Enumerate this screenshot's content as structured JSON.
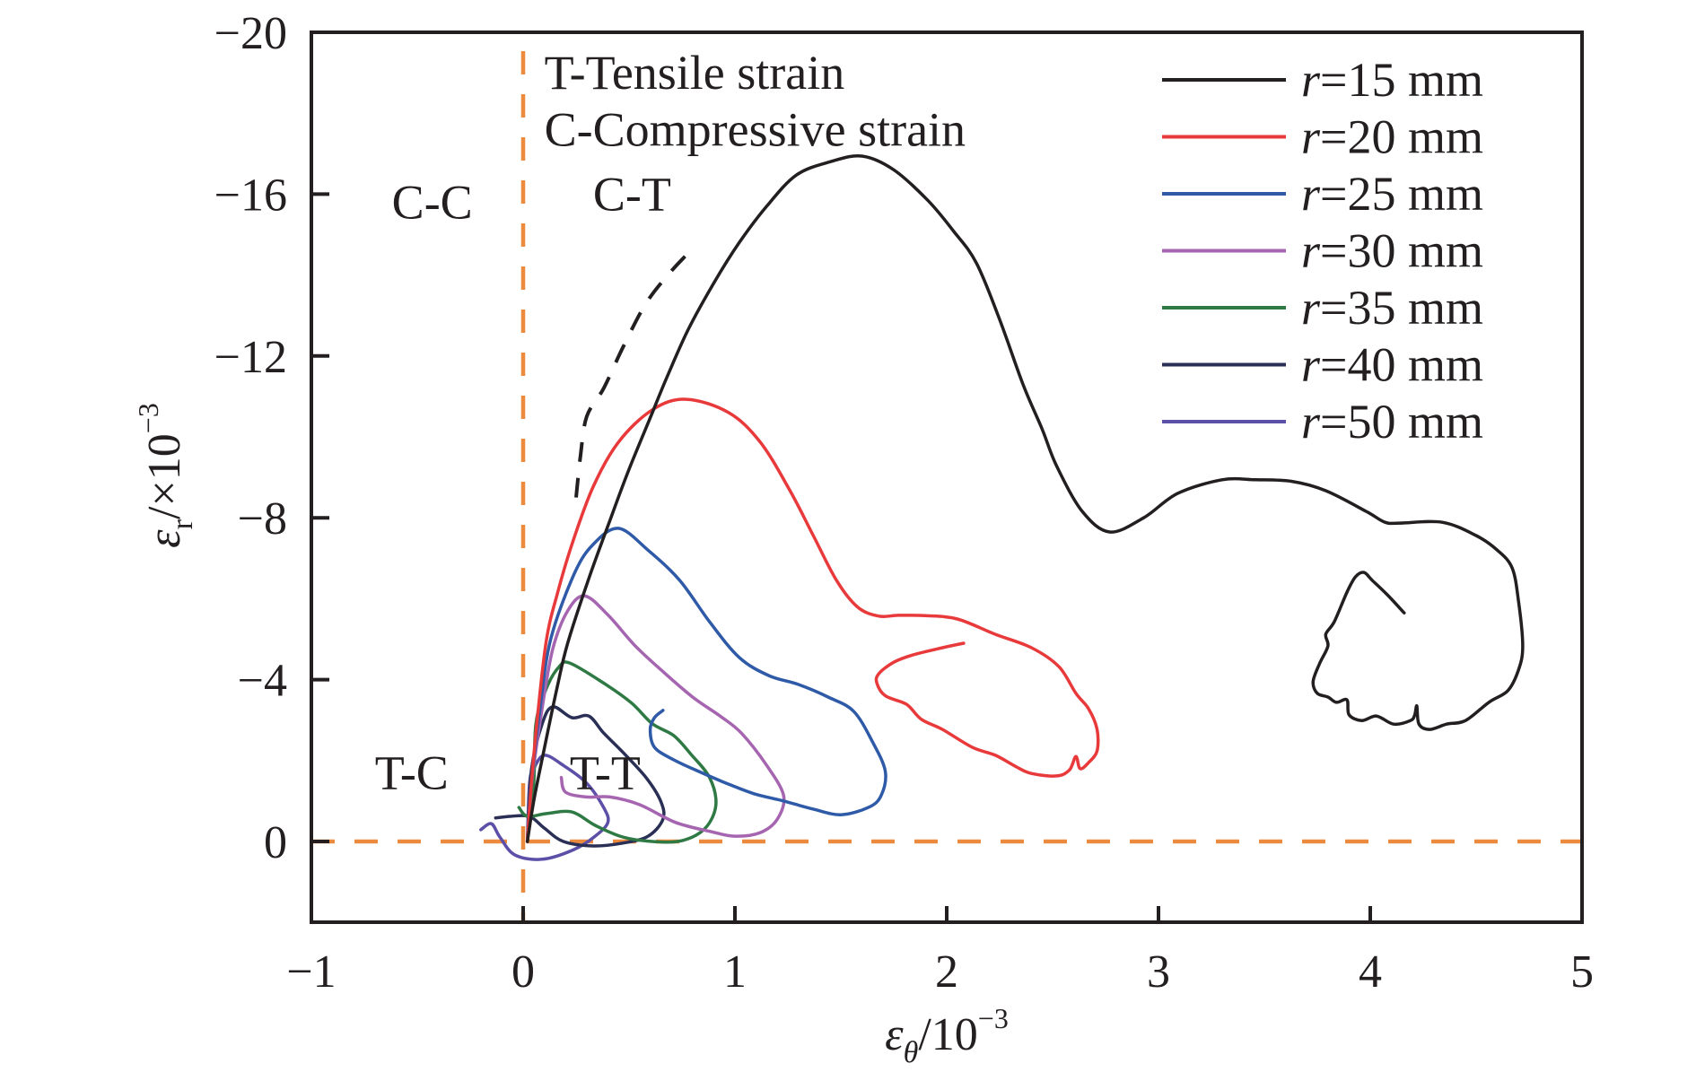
{
  "chart_data": {
    "type": "line",
    "title": "",
    "xlabel": {
      "symbol": "ε",
      "subscript": "θ",
      "unit": "/10",
      "exponent": "−3"
    },
    "ylabel": {
      "symbol": "ε",
      "subscript": "r",
      "unit": "/×10",
      "exponent": "−3"
    },
    "xlim": [
      -1,
      5
    ],
    "ylim": [
      -20,
      2
    ],
    "y_axis_inverted": true,
    "x_ticks": [
      -1,
      0,
      1,
      2,
      3,
      4,
      5
    ],
    "x_tick_labels": [
      "−1",
      "0",
      "1",
      "2",
      "3",
      "4",
      "5"
    ],
    "y_ticks": [
      -20,
      -16,
      -12,
      -8,
      -4,
      0
    ],
    "y_tick_labels": [
      "−20",
      "−16",
      "−12",
      "−8",
      "−4",
      "0"
    ],
    "grid": false,
    "legend_position": "top-right",
    "reference_lines": [
      {
        "orientation": "vertical",
        "value": 0,
        "style": "dashed",
        "color": "#ec8a3d"
      },
      {
        "orientation": "horizontal",
        "value": 0,
        "style": "dashed",
        "color": "#ec8a3d"
      }
    ],
    "annotations": [
      {
        "text": "T-Tensile strain",
        "x": 0.1,
        "y": -18.6
      },
      {
        "text": "C-Compressive strain",
        "x": 0.1,
        "y": -17.2
      },
      {
        "text": "C-C",
        "x": -0.62,
        "y": -15.4
      },
      {
        "text": "C-T",
        "x": 0.33,
        "y": -15.6
      },
      {
        "text": "T-C",
        "x": -0.7,
        "y": -1.3
      },
      {
        "text": "T-T",
        "x": 0.22,
        "y": -1.3
      }
    ],
    "guide_curve": {
      "style": "dashed",
      "color": "#231f20",
      "points": [
        [
          0.25,
          -8.5
        ],
        [
          0.27,
          -9.5
        ],
        [
          0.3,
          -10.5
        ],
        [
          0.38,
          -11.2
        ],
        [
          0.47,
          -12.2
        ],
        [
          0.58,
          -13.3
        ],
        [
          0.7,
          -14.1
        ],
        [
          0.81,
          -14.7
        ]
      ]
    },
    "series": [
      {
        "name": "r=15 mm",
        "label_var": "r",
        "label_value": "=15 mm",
        "color": "#231f20",
        "points": [
          [
            0.02,
            0
          ],
          [
            0.05,
            -1.0
          ],
          [
            0.1,
            -2.3
          ],
          [
            0.16,
            -3.8
          ],
          [
            0.21,
            -4.9
          ],
          [
            0.31,
            -6.5
          ],
          [
            0.41,
            -7.94
          ],
          [
            0.5,
            -9.2
          ],
          [
            0.61,
            -10.6
          ],
          [
            0.68,
            -11.49
          ],
          [
            0.78,
            -12.66
          ],
          [
            0.9,
            -13.8
          ],
          [
            1.02,
            -14.8
          ],
          [
            1.15,
            -15.7
          ],
          [
            1.29,
            -16.47
          ],
          [
            1.45,
            -16.8
          ],
          [
            1.6,
            -16.94
          ],
          [
            1.75,
            -16.6
          ],
          [
            1.91,
            -15.85
          ],
          [
            2.03,
            -15.1
          ],
          [
            2.14,
            -14.3
          ],
          [
            2.25,
            -12.9
          ],
          [
            2.36,
            -11.3
          ],
          [
            2.45,
            -10.2
          ],
          [
            2.52,
            -9.27
          ],
          [
            2.64,
            -8.16
          ],
          [
            2.77,
            -7.65
          ],
          [
            2.93,
            -8.0
          ],
          [
            3.09,
            -8.6
          ],
          [
            3.3,
            -8.94
          ],
          [
            3.46,
            -8.94
          ],
          [
            3.63,
            -8.9
          ],
          [
            3.79,
            -8.67
          ],
          [
            3.98,
            -8.16
          ],
          [
            4.07,
            -7.89
          ],
          [
            4.14,
            -7.87
          ],
          [
            4.34,
            -7.89
          ],
          [
            4.5,
            -7.56
          ],
          [
            4.6,
            -7.2
          ],
          [
            4.67,
            -6.76
          ],
          [
            4.7,
            -5.94
          ],
          [
            4.72,
            -4.83
          ],
          [
            4.7,
            -4.24
          ],
          [
            4.65,
            -3.73
          ],
          [
            4.56,
            -3.44
          ],
          [
            4.45,
            -2.99
          ],
          [
            4.36,
            -2.9
          ],
          [
            4.28,
            -2.77
          ],
          [
            4.23,
            -2.9
          ],
          [
            4.22,
            -3.35
          ],
          [
            4.21,
            -3.13
          ],
          [
            4.19,
            -2.99
          ],
          [
            4.11,
            -2.9
          ],
          [
            4.03,
            -3.1
          ],
          [
            3.96,
            -2.99
          ],
          [
            3.9,
            -3.13
          ],
          [
            3.89,
            -3.5
          ],
          [
            3.84,
            -3.44
          ],
          [
            3.8,
            -3.57
          ],
          [
            3.75,
            -3.66
          ],
          [
            3.73,
            -3.95
          ],
          [
            3.76,
            -4.39
          ],
          [
            3.8,
            -4.83
          ],
          [
            3.79,
            -5.12
          ],
          [
            3.83,
            -5.43
          ],
          [
            3.89,
            -6.16
          ],
          [
            3.93,
            -6.54
          ],
          [
            3.97,
            -6.65
          ],
          [
            4.01,
            -6.45
          ],
          [
            4.08,
            -6.1
          ],
          [
            4.16,
            -5.65
          ]
        ]
      },
      {
        "name": "r=20 mm",
        "label_var": "r",
        "label_value": "=20 mm",
        "color": "#e8393b",
        "points": [
          [
            0.02,
            0
          ],
          [
            0.04,
            -1.5
          ],
          [
            0.07,
            -3.2
          ],
          [
            0.11,
            -4.99
          ],
          [
            0.16,
            -6.1
          ],
          [
            0.23,
            -7.34
          ],
          [
            0.33,
            -8.76
          ],
          [
            0.45,
            -9.87
          ],
          [
            0.61,
            -10.67
          ],
          [
            0.77,
            -10.93
          ],
          [
            0.97,
            -10.6
          ],
          [
            1.12,
            -9.87
          ],
          [
            1.26,
            -8.67
          ],
          [
            1.37,
            -7.56
          ],
          [
            1.48,
            -6.45
          ],
          [
            1.58,
            -5.79
          ],
          [
            1.68,
            -5.57
          ],
          [
            1.77,
            -5.59
          ],
          [
            1.9,
            -5.58
          ],
          [
            2.05,
            -5.5
          ],
          [
            2.23,
            -5.12
          ],
          [
            2.4,
            -4.79
          ],
          [
            2.53,
            -4.32
          ],
          [
            2.61,
            -3.66
          ],
          [
            2.67,
            -3.28
          ],
          [
            2.71,
            -2.77
          ],
          [
            2.71,
            -2.24
          ],
          [
            2.67,
            -1.95
          ],
          [
            2.63,
            -1.8
          ],
          [
            2.61,
            -2.1
          ],
          [
            2.58,
            -1.77
          ],
          [
            2.52,
            -1.62
          ],
          [
            2.4,
            -1.68
          ],
          [
            2.33,
            -1.84
          ],
          [
            2.23,
            -2.13
          ],
          [
            2.12,
            -2.33
          ],
          [
            1.98,
            -2.77
          ],
          [
            1.88,
            -3.02
          ],
          [
            1.81,
            -3.39
          ],
          [
            1.71,
            -3.6
          ],
          [
            1.67,
            -3.92
          ],
          [
            1.68,
            -4.15
          ],
          [
            1.75,
            -4.43
          ],
          [
            1.84,
            -4.61
          ],
          [
            1.98,
            -4.79
          ],
          [
            2.08,
            -4.9
          ]
        ]
      },
      {
        "name": "r=25 mm",
        "label_var": "r",
        "label_value": "=25 mm",
        "color": "#2e5aa8",
        "points": [
          [
            0.02,
            0
          ],
          [
            0.04,
            -1.5
          ],
          [
            0.08,
            -3.3
          ],
          [
            0.13,
            -5.0
          ],
          [
            0.24,
            -6.6
          ],
          [
            0.33,
            -7.34
          ],
          [
            0.45,
            -7.74
          ],
          [
            0.59,
            -7.2
          ],
          [
            0.74,
            -6.45
          ],
          [
            0.88,
            -5.43
          ],
          [
            1.02,
            -4.55
          ],
          [
            1.16,
            -4.1
          ],
          [
            1.3,
            -3.88
          ],
          [
            1.44,
            -3.57
          ],
          [
            1.56,
            -3.22
          ],
          [
            1.65,
            -2.46
          ],
          [
            1.71,
            -1.73
          ],
          [
            1.69,
            -1.13
          ],
          [
            1.63,
            -0.84
          ],
          [
            1.5,
            -0.66
          ],
          [
            1.37,
            -0.8
          ],
          [
            1.23,
            -1.0
          ],
          [
            1.09,
            -1.18
          ],
          [
            0.95,
            -1.46
          ],
          [
            0.83,
            -1.73
          ],
          [
            0.71,
            -2.02
          ],
          [
            0.62,
            -2.33
          ],
          [
            0.6,
            -2.77
          ],
          [
            0.62,
            -3.06
          ],
          [
            0.66,
            -3.24
          ]
        ]
      },
      {
        "name": "r=30 mm",
        "label_var": "r",
        "label_value": "=30 mm",
        "color": "#a565b0",
        "points": [
          [
            0.02,
            0
          ],
          [
            0.04,
            -1.43
          ],
          [
            0.09,
            -3.3
          ],
          [
            0.14,
            -4.76
          ],
          [
            0.21,
            -5.7
          ],
          [
            0.29,
            -6.07
          ],
          [
            0.4,
            -5.6
          ],
          [
            0.53,
            -4.83
          ],
          [
            0.66,
            -4.2
          ],
          [
            0.8,
            -3.57
          ],
          [
            0.93,
            -3.1
          ],
          [
            1.03,
            -2.68
          ],
          [
            1.15,
            -1.88
          ],
          [
            1.23,
            -1.13
          ],
          [
            1.2,
            -0.55
          ],
          [
            1.12,
            -0.22
          ],
          [
            1.0,
            -0.13
          ],
          [
            0.89,
            -0.24
          ],
          [
            0.72,
            -0.47
          ],
          [
            0.55,
            -0.91
          ],
          [
            0.41,
            -1.1
          ],
          [
            0.3,
            -1.1
          ],
          [
            0.2,
            -1.22
          ],
          [
            0.18,
            -1.58
          ]
        ]
      },
      {
        "name": "r=35 mm",
        "label_var": "r",
        "label_value": "=35 mm",
        "color": "#2f7a44",
        "points": [
          [
            0.02,
            0
          ],
          [
            0.05,
            -1.43
          ],
          [
            0.06,
            -2.91
          ],
          [
            0.11,
            -3.79
          ],
          [
            0.17,
            -4.32
          ],
          [
            0.22,
            -4.41
          ],
          [
            0.37,
            -3.95
          ],
          [
            0.51,
            -3.43
          ],
          [
            0.61,
            -2.91
          ],
          [
            0.71,
            -2.62
          ],
          [
            0.79,
            -2.17
          ],
          [
            0.88,
            -1.58
          ],
          [
            0.91,
            -0.91
          ],
          [
            0.86,
            -0.33
          ],
          [
            0.75,
            -0.02
          ],
          [
            0.61,
            0
          ],
          [
            0.47,
            -0.11
          ],
          [
            0.34,
            -0.4
          ],
          [
            0.23,
            -0.73
          ],
          [
            0.11,
            -0.69
          ],
          [
            0.02,
            -0.62
          ],
          [
            -0.02,
            -0.84
          ]
        ]
      },
      {
        "name": "r=40 mm",
        "label_var": "r",
        "label_value": "=40 mm",
        "color": "#2a2f55",
        "points": [
          [
            0.02,
            0
          ],
          [
            0.04,
            -1.8
          ],
          [
            0.09,
            -2.91
          ],
          [
            0.14,
            -3.33
          ],
          [
            0.23,
            -3.06
          ],
          [
            0.31,
            -3.1
          ],
          [
            0.38,
            -2.68
          ],
          [
            0.47,
            -2.21
          ],
          [
            0.58,
            -1.58
          ],
          [
            0.65,
            -0.99
          ],
          [
            0.66,
            -0.55
          ],
          [
            0.59,
            -0.13
          ],
          [
            0.47,
            0.04
          ],
          [
            0.33,
            0.11
          ],
          [
            0.19,
            0
          ],
          [
            0.1,
            -0.33
          ],
          [
            0.03,
            -0.62
          ],
          [
            -0.06,
            -0.62
          ],
          [
            -0.13,
            -0.58
          ]
        ]
      },
      {
        "name": "r=50 mm",
        "label_var": "r",
        "label_value": "=50 mm",
        "color": "#5b4fa8",
        "points": [
          [
            0.02,
            0
          ],
          [
            0.03,
            -1.43
          ],
          [
            0.05,
            -1.8
          ],
          [
            0.1,
            -2.13
          ],
          [
            0.19,
            -1.88
          ],
          [
            0.3,
            -1.44
          ],
          [
            0.38,
            -0.84
          ],
          [
            0.4,
            -0.47
          ],
          [
            0.34,
            -0.13
          ],
          [
            0.24,
            0.2
          ],
          [
            0.09,
            0.44
          ],
          [
            -0.04,
            0.33
          ],
          [
            -0.11,
            -0.11
          ],
          [
            -0.15,
            -0.44
          ],
          [
            -0.2,
            -0.29
          ]
        ]
      }
    ]
  }
}
